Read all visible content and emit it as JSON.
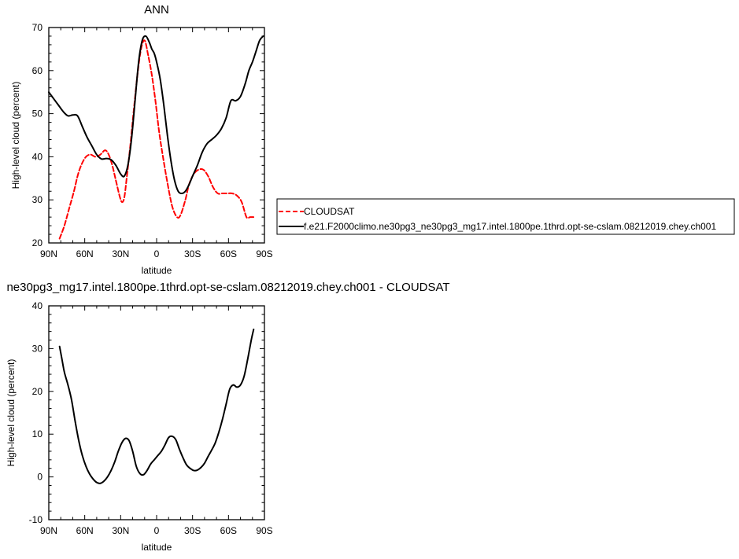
{
  "colors": {
    "cloudsat": "#ff0000",
    "model": "#000000"
  },
  "chart_data": [
    {
      "type": "line",
      "title": "ANN",
      "xlabel": "latitude",
      "ylabel": "High-level cloud (percent)",
      "xlim": [
        90,
        -90
      ],
      "ylim": [
        20,
        70
      ],
      "xticks": [
        90,
        60,
        30,
        0,
        -30,
        -60,
        -90
      ],
      "xticklabels": [
        "90N",
        "60N",
        "30N",
        "0",
        "30S",
        "60S",
        "90S"
      ],
      "yticks": [
        20,
        30,
        40,
        50,
        60,
        70
      ],
      "legend": {
        "placement": "right"
      },
      "series": [
        {
          "name": "CLOUDSAT",
          "style": "dashed",
          "color": "#ff0000",
          "x": [
            81,
            77,
            73,
            69,
            66,
            63,
            59,
            55,
            51,
            47,
            43,
            40,
            37,
            34,
            31,
            29,
            27,
            25,
            22,
            19,
            16,
            13,
            10,
            7,
            4,
            1,
            -2,
            -5,
            -9,
            -13,
            -17,
            -20,
            -24,
            -27,
            -31,
            -35,
            -39,
            -43,
            -47,
            -51,
            -55,
            -59,
            -63,
            -67,
            -71,
            -75,
            -78,
            -81
          ],
          "y": [
            21,
            24,
            28,
            32,
            35.5,
            38,
            40,
            40.5,
            40,
            40.5,
            41.5,
            40.5,
            38,
            34.5,
            31,
            29.5,
            30.5,
            35,
            42.5,
            51,
            59,
            65,
            67,
            63.5,
            59,
            53,
            46,
            40.5,
            34,
            28.5,
            26,
            26.5,
            30,
            33.5,
            36,
            37,
            37,
            35.5,
            33,
            31.5,
            31.5,
            31.5,
            31.5,
            31,
            29.5,
            26,
            26,
            26
          ]
        },
        {
          "name": "f.e21.F2000climo.ne30pg3_ne30pg3_mg17.intel.1800pe.1thrd.opt-se-cslam.08212019.chey.ch001",
          "style": "solid",
          "color": "#000000",
          "x": [
            90,
            86,
            82,
            78,
            74,
            70,
            66,
            62,
            58,
            54,
            50,
            46,
            42,
            38,
            34,
            30,
            27,
            24,
            21,
            18,
            15,
            12,
            9,
            6,
            4,
            2,
            0,
            -3,
            -6,
            -9,
            -12,
            -15,
            -18,
            -21,
            -24,
            -27,
            -30,
            -34,
            -38,
            -42,
            -46,
            -50,
            -54,
            -58,
            -62,
            -66,
            -70,
            -74,
            -77,
            -80,
            -83,
            -86,
            -89
          ],
          "y": [
            55,
            53.5,
            52,
            50.5,
            49.5,
            49.7,
            49.5,
            47,
            44.5,
            42.5,
            40.5,
            39.5,
            39.6,
            39.3,
            38,
            36,
            35.5,
            38,
            44,
            53,
            62,
            67,
            68,
            66.5,
            65,
            64,
            62,
            58,
            52,
            45,
            39,
            34.5,
            32,
            31.5,
            32,
            33.5,
            35.5,
            38,
            41,
            43,
            44,
            45,
            46.5,
            49,
            53,
            53,
            54,
            57,
            60,
            62,
            64.5,
            67,
            68
          ]
        }
      ]
    },
    {
      "type": "line",
      "title": "ne30pg3_mg17.intel.1800pe.1thrd.opt-se-cslam.08212019.chey.ch001 - CLOUDSAT",
      "xlabel": "latitude",
      "ylabel": "High-level cloud (percent)",
      "xlim": [
        90,
        -90
      ],
      "ylim": [
        -10,
        40
      ],
      "xticks": [
        90,
        60,
        30,
        0,
        -30,
        -60,
        -90
      ],
      "xticklabels": [
        "90N",
        "60N",
        "30N",
        "0",
        "30S",
        "60S",
        "90S"
      ],
      "yticks": [
        -10,
        0,
        10,
        20,
        30,
        40
      ],
      "series": [
        {
          "style": "solid",
          "color": "#000000",
          "x": [
            81,
            79,
            77,
            74,
            71,
            68,
            65,
            62,
            59,
            56,
            53,
            50,
            47,
            44,
            41,
            38,
            35,
            32,
            29,
            26,
            23,
            20,
            17,
            14,
            11,
            8,
            5,
            2,
            -1,
            -4,
            -7,
            -10,
            -13,
            -16,
            -19,
            -22,
            -25,
            -28,
            -31,
            -34,
            -37,
            -40,
            -43,
            -46,
            -49,
            -52,
            -55,
            -58,
            -61,
            -64,
            -67,
            -70,
            -73,
            -76,
            -79,
            -81
          ],
          "y": [
            30.5,
            27.5,
            24.5,
            21.5,
            18,
            13,
            8.5,
            5,
            2.5,
            0.7,
            -0.5,
            -1.3,
            -1.5,
            -1,
            0,
            1.5,
            3.5,
            6,
            8,
            9,
            8.5,
            6,
            2.5,
            0.8,
            0.5,
            1.5,
            3,
            4,
            5,
            6,
            7.5,
            9.2,
            9.5,
            8.7,
            6.5,
            4.5,
            2.8,
            2,
            1.5,
            1.6,
            2.2,
            3.2,
            4.8,
            6.3,
            8,
            10.5,
            13.5,
            17,
            20.5,
            21.5,
            21,
            21.5,
            23.5,
            27.5,
            32,
            34.5
          ]
        }
      ]
    }
  ]
}
